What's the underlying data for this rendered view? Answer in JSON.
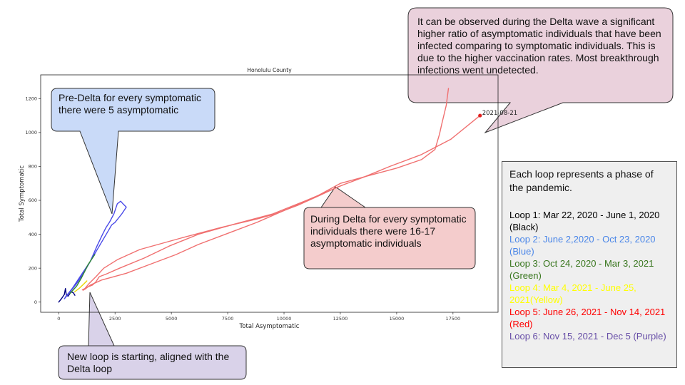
{
  "chart_data": {
    "type": "line",
    "title": "Honolulu County",
    "xlabel": "Total Asymptomatic",
    "ylabel": "Total Symptomatic",
    "xlim": [
      -800,
      19500
    ],
    "ylim": [
      -60,
      1340
    ],
    "xticks": [
      0,
      2500,
      5000,
      7500,
      10000,
      12500,
      15000,
      17500
    ],
    "yticks": [
      0,
      200,
      400,
      600,
      800,
      1000,
      1200
    ],
    "grid": false,
    "series": [
      {
        "color": "#000080",
        "points": [
          [
            0,
            0
          ],
          [
            120,
            20
          ],
          [
            250,
            45
          ],
          [
            300,
            80
          ],
          [
            340,
            40
          ],
          [
            420,
            35
          ],
          [
            550,
            60
          ],
          [
            650,
            55
          ],
          [
            720,
            40
          ]
        ]
      },
      {
        "color": "#4a4ae8",
        "points": [
          [
            250,
            20
          ],
          [
            500,
            60
          ],
          [
            800,
            110
          ],
          [
            1100,
            170
          ],
          [
            1400,
            240
          ],
          [
            1700,
            330
          ],
          [
            1950,
            400
          ],
          [
            2100,
            440
          ],
          [
            2250,
            470
          ],
          [
            2450,
            520
          ],
          [
            2600,
            580
          ],
          [
            2750,
            595
          ],
          [
            2850,
            580
          ],
          [
            3000,
            560
          ],
          [
            2800,
            520
          ],
          [
            2500,
            470
          ],
          [
            2350,
            455
          ],
          [
            2200,
            420
          ],
          [
            1800,
            330
          ],
          [
            1400,
            240
          ],
          [
            1000,
            160
          ],
          [
            600,
            80
          ],
          [
            300,
            30
          ]
        ]
      },
      {
        "color": "#2e8b2e",
        "points": [
          [
            500,
            50
          ],
          [
            800,
            95
          ],
          [
            1000,
            140
          ],
          [
            1150,
            180
          ],
          [
            1300,
            220
          ],
          [
            1450,
            250
          ],
          [
            1550,
            270
          ],
          [
            1600,
            280
          ]
        ]
      },
      {
        "color": "#e8d800",
        "points": [
          [
            700,
            60
          ],
          [
            900,
            80
          ],
          [
            1100,
            105
          ],
          [
            1250,
            125
          ]
        ]
      },
      {
        "color": "#f07070",
        "points": [
          [
            1100,
            70
          ],
          [
            1350,
            110
          ],
          [
            1650,
            150
          ],
          [
            2000,
            200
          ],
          [
            2600,
            250
          ],
          [
            3600,
            310
          ],
          [
            5500,
            380
          ],
          [
            7200,
            440
          ],
          [
            8800,
            490
          ],
          [
            9600,
            520
          ],
          [
            10600,
            570
          ],
          [
            11600,
            630
          ],
          [
            12400,
            680
          ],
          [
            13600,
            740
          ],
          [
            14700,
            800
          ],
          [
            16100,
            870
          ],
          [
            17400,
            960
          ],
          [
            18700,
            1100
          ]
        ]
      },
      {
        "color": "#f07070",
        "points": [
          [
            1150,
            75
          ],
          [
            1400,
            100
          ],
          [
            1900,
            130
          ],
          [
            3000,
            170
          ],
          [
            4000,
            220
          ],
          [
            5200,
            280
          ],
          [
            6200,
            340
          ],
          [
            7600,
            410
          ],
          [
            8800,
            470
          ],
          [
            10000,
            540
          ],
          [
            11400,
            620
          ],
          [
            12500,
            700
          ],
          [
            13600,
            740
          ],
          [
            15000,
            790
          ],
          [
            16100,
            840
          ],
          [
            16700,
            900
          ],
          [
            16900,
            990
          ],
          [
            17000,
            1050
          ],
          [
            17200,
            1160
          ],
          [
            17300,
            1260
          ]
        ]
      },
      {
        "color": "#f07070",
        "points": [
          [
            1050,
            72
          ],
          [
            1300,
            90
          ],
          [
            1500,
            100
          ],
          [
            1650,
            120
          ],
          [
            1800,
            150
          ],
          [
            2100,
            165
          ],
          [
            2700,
            200
          ],
          [
            3800,
            260
          ],
          [
            4900,
            330
          ],
          [
            6200,
            400
          ],
          [
            7800,
            460
          ],
          [
            9500,
            520
          ],
          [
            11000,
            600
          ],
          [
            12600,
            690
          ]
        ]
      }
    ],
    "marker": {
      "x": 18700,
      "y": 1100,
      "label": "2021-08-21",
      "color": "#e0201e"
    }
  },
  "callouts": {
    "pre_delta": {
      "text": "Pre-Delta for every symptomatic there were 5 asymptomatic",
      "fill": "#c9daf8"
    },
    "delta_wave": {
      "text": "It can be observed during the Delta wave a significant higher ratio of asymptomatic individuals that have been infected comparing to symptomatic individuals. This is due to the higher vaccination rates. Most breakthrough infections went undetected.",
      "fill": "#ead1dc"
    },
    "during_delta": {
      "text": "During Delta for every symptomatic individuals there were 16-17 asymptomatic individuals",
      "fill": "#f4cccc"
    },
    "new_loop": {
      "text": "New loop is starting, aligned with the Delta loop",
      "fill": "#d9d2e9"
    }
  },
  "legend": {
    "intro": "Each loop represents a phase of the pandemic.",
    "entries": [
      {
        "text": "Loop 1: Mar 22, 2020 - June 1, 2020 (Black)",
        "color": "#000000"
      },
      {
        "text": "Loop 2: June 2,2020 - Oct 23, 2020 (Blue)",
        "color": "#4a86e8"
      },
      {
        "text": "Loop 3: Oct 24, 2020 - Mar 3, 2021 (Green)",
        "color": "#38761d"
      },
      {
        "text": "Loop 4: Mar 4, 2021 - June 25, 2021(Yellow)",
        "color": "#ffff00"
      },
      {
        "text": "Loop 5: June 26, 2021 - Nov 14, 2021 (Red)",
        "color": "#ff0000"
      },
      {
        "text": "Loop 6: Nov 15, 2021 - Dec 5 (Purple)",
        "color": "#674ea7"
      }
    ]
  }
}
